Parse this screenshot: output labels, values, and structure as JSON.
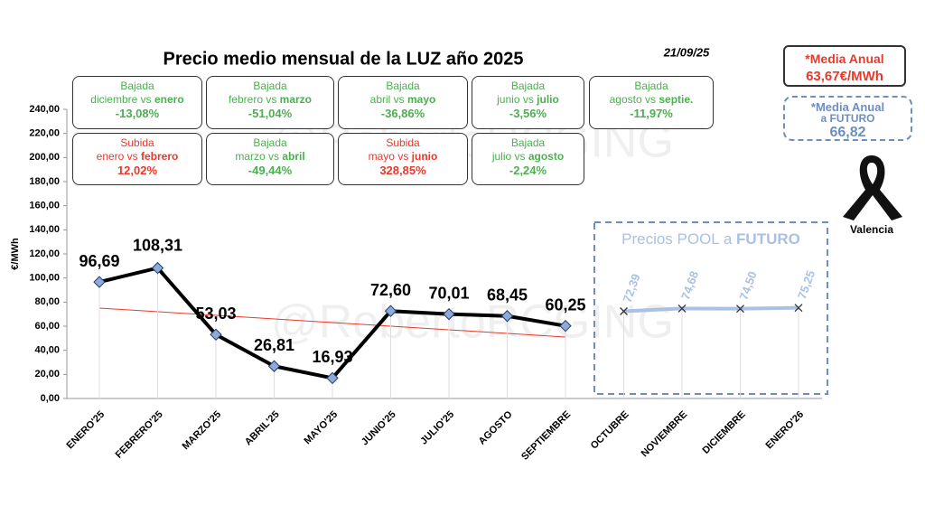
{
  "chart_data": {
    "type": "line",
    "title": "Precio medio mensual de la LUZ año 2025",
    "date": "21/09/25",
    "watermark": "@RobertoRCGING",
    "y_label": "€/MWh",
    "categories": [
      "ENERO'25",
      "FEBRERO'25",
      "MARZO'25",
      "ABRIL'25",
      "MAYO'25",
      "JUNIO'25",
      "JULIO'25",
      "AGOSTO",
      "SEPTIEMBRE",
      "OCTUBRE",
      "NOVIEMBRE",
      "DICIEMBRE",
      "ENERO'26"
    ],
    "ylim": [
      0,
      240
    ],
    "yticks": [
      {
        "value": 0,
        "label": "0,00"
      },
      {
        "value": 20,
        "label": "20,00"
      },
      {
        "value": 40,
        "label": "40,00"
      },
      {
        "value": 60,
        "label": "60,00"
      },
      {
        "value": 80,
        "label": "80,00"
      },
      {
        "value": 100,
        "label": "100,00"
      },
      {
        "value": 120,
        "label": "120,00"
      },
      {
        "value": 140,
        "label": "140,00"
      },
      {
        "value": 160,
        "label": "160,00"
      },
      {
        "value": 180,
        "label": "180,00"
      },
      {
        "value": 200,
        "label": "200,00"
      },
      {
        "value": 220,
        "label": "220,00"
      },
      {
        "value": 240,
        "label": "240,00"
      }
    ],
    "series": [
      {
        "name": "Precio medio",
        "color": "#000000",
        "marker_color": "#8eaadb",
        "values": [
          96.69,
          108.31,
          53.03,
          26.81,
          16.93,
          72.6,
          70.01,
          68.45,
          60.25,
          null,
          null,
          null,
          null
        ],
        "value_labels": [
          "96,69",
          "108,31",
          "53,03",
          "26,81",
          "16,93",
          "72,60",
          "70,01",
          "68,45",
          "60,25",
          null,
          null,
          null,
          null
        ]
      },
      {
        "name": "Futuro",
        "color": "#a9c1e4",
        "values": [
          null,
          null,
          null,
          null,
          null,
          null,
          null,
          null,
          null,
          72.39,
          74.68,
          74.5,
          75.25
        ],
        "value_labels": [
          null,
          null,
          null,
          null,
          null,
          null,
          null,
          null,
          null,
          "72,39",
          "74,68",
          "74,50",
          "75,25"
        ]
      }
    ],
    "trend": {
      "color": "#e8392b",
      "values": [
        75,
        51
      ]
    },
    "futuro_box": {
      "title": "Precios POOL a",
      "bold": "FUTURO"
    },
    "comparisons": [
      {
        "label": "Bajada",
        "text": "diciembre vs",
        "bold": "enero",
        "value": "-13,08%",
        "color": "#4caf50"
      },
      {
        "label": "Bajada",
        "text": "febrero vs",
        "bold": "marzo",
        "value": "-51,04%",
        "color": "#4caf50"
      },
      {
        "label": "Bajada",
        "text": "abril vs",
        "bold": "mayo",
        "value": "-36,86%",
        "color": "#4caf50"
      },
      {
        "label": "Bajada",
        "text": "junio vs",
        "bold": "julio",
        "value": "-3,56%",
        "color": "#4caf50"
      },
      {
        "label": "Bajada",
        "text": "agosto vs",
        "bold": "septie.",
        "value": "-11,97%",
        "color": "#4caf50"
      },
      {
        "label": "Subida",
        "text": "enero vs",
        "bold": "febrero",
        "value": "12,02%",
        "color": "#e8392b"
      },
      {
        "label": "Bajada",
        "text": "marzo vs",
        "bold": "abril",
        "value": "-49,44%",
        "color": "#4caf50"
      },
      {
        "label": "Subida",
        "text": "mayo vs",
        "bold": "junio",
        "value": "328,85%",
        "color": "#e8392b"
      },
      {
        "label": "Bajada",
        "text": "julio vs",
        "bold": "agosto",
        "value": "-2,24%",
        "color": "#4caf50"
      }
    ],
    "media_anual": {
      "label": "*Media Anual",
      "value": "63,67€/MWh"
    },
    "media_futuro": {
      "label": "*Media Anual",
      "sub": "a FUTURO",
      "value": "66,82"
    },
    "ribbon_label": "Valencia"
  }
}
